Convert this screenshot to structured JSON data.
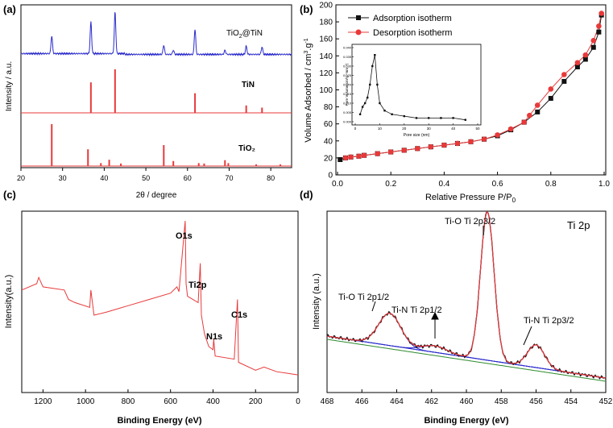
{
  "colors": {
    "blue": "#2b2bcc",
    "red": "#e8393a",
    "black": "#111111",
    "green": "#2e8b2e",
    "inset_line": "#111111"
  },
  "chart_data": [
    {
      "panel": "(a)",
      "type": "line",
      "xlabel": "2θ / degree",
      "ylabel": "Intensity / a.u.",
      "xlim": [
        20,
        85
      ],
      "xticks": [
        20,
        30,
        40,
        50,
        60,
        70,
        80
      ],
      "series_labels": [
        "TiO2@TiN",
        "TiN",
        "TiO₂"
      ],
      "tio2_tin_peaks": [
        [
          27.4,
          0.42
        ],
        [
          36.8,
          0.75
        ],
        [
          42.6,
          1.0
        ],
        [
          54.3,
          0.22
        ],
        [
          56.6,
          0.1
        ],
        [
          61.8,
          0.6
        ],
        [
          69.0,
          0.1
        ],
        [
          74.1,
          0.2
        ],
        [
          77.9,
          0.18
        ]
      ],
      "tin_lines": [
        [
          36.8,
          0.7
        ],
        [
          42.6,
          1.0
        ],
        [
          61.8,
          0.45
        ],
        [
          74.1,
          0.17
        ],
        [
          77.9,
          0.12
        ]
      ],
      "tio2_lines": [
        [
          27.4,
          1.0
        ],
        [
          36.1,
          0.4
        ],
        [
          39.2,
          0.07
        ],
        [
          41.2,
          0.15
        ],
        [
          44.0,
          0.06
        ],
        [
          54.3,
          0.5
        ],
        [
          56.6,
          0.12
        ],
        [
          62.7,
          0.07
        ],
        [
          64.0,
          0.06
        ],
        [
          69.0,
          0.14
        ],
        [
          69.8,
          0.07
        ],
        [
          76.5,
          0.04
        ],
        [
          82.3,
          0.04
        ]
      ]
    },
    {
      "panel": "(b)",
      "type": "line",
      "xlabel": "Relative Pressure  P/P",
      "xlabel_sub": "0",
      "ylabel": "Volume Adsorbed / cm",
      "ylabel_sup1": "3",
      "ylabel_mid": ".g",
      "ylabel_sup2": "-1",
      "xlim": [
        0,
        1.0
      ],
      "ylim": [
        0,
        200
      ],
      "xticks": [
        0.0,
        0.2,
        0.4,
        0.6,
        0.8,
        1.0
      ],
      "yticks": [
        0,
        20,
        40,
        60,
        80,
        100,
        120,
        140,
        160,
        180,
        200
      ],
      "legend": [
        "Adsorption isotherm",
        "Desorption isotherm"
      ],
      "series": [
        {
          "name": "Adsorption isotherm",
          "x": [
            0.01,
            0.03,
            0.05,
            0.08,
            0.1,
            0.15,
            0.2,
            0.25,
            0.3,
            0.35,
            0.4,
            0.45,
            0.5,
            0.55,
            0.6,
            0.65,
            0.7,
            0.75,
            0.8,
            0.85,
            0.9,
            0.93,
            0.96,
            0.98,
            0.99
          ],
          "y": [
            18,
            20,
            21,
            22,
            23,
            25,
            27,
            29,
            31,
            33,
            35,
            37,
            39,
            42,
            46,
            53,
            62,
            74,
            90,
            110,
            127,
            136,
            150,
            168,
            188
          ]
        },
        {
          "name": "Desorption isotherm",
          "x": [
            0.99,
            0.98,
            0.96,
            0.93,
            0.9,
            0.85,
            0.8,
            0.75,
            0.72,
            0.7,
            0.65,
            0.6,
            0.55,
            0.5,
            0.45,
            0.4,
            0.35,
            0.3,
            0.25,
            0.2,
            0.15,
            0.1,
            0.08,
            0.05,
            0.03
          ],
          "y": [
            190,
            175,
            158,
            141,
            132,
            118,
            101,
            82,
            70,
            62,
            54,
            47,
            42,
            39,
            37,
            35,
            33,
            31,
            29,
            27,
            25,
            23,
            22,
            21,
            20
          ]
        }
      ],
      "inset": {
        "xlabel": "Pore size (nm)",
        "ylabel": "Pore Volume(cm³g⁻¹nm⁻¹)",
        "xlim": [
          0,
          50
        ],
        "ylim": [
          0,
          0.04
        ],
        "xticks": [
          0,
          10,
          20,
          30,
          40,
          50
        ],
        "yticks": [
          "0.000",
          "0.005",
          "0.010",
          "0.015",
          "0.020",
          "0.025",
          "0.030",
          "0.035",
          "0.040"
        ],
        "x": [
          2,
          3,
          4,
          5,
          6,
          7,
          8,
          9,
          10,
          12,
          15,
          20,
          25,
          30,
          35,
          40,
          45
        ],
        "y": [
          0.004,
          0.008,
          0.01,
          0.013,
          0.02,
          0.03,
          0.036,
          0.02,
          0.01,
          0.006,
          0.004,
          0.003,
          0.002,
          0.002,
          0.002,
          0.002,
          0.001
        ]
      }
    },
    {
      "panel": "(c)",
      "type": "line",
      "xlabel": "Binding Energy (eV)",
      "ylabel": "Intensity(a.u.)",
      "xlim": [
        1300,
        0
      ],
      "xticks": [
        1200,
        1000,
        800,
        600,
        400,
        200,
        0
      ],
      "annotations": [
        "O1s",
        "Ti2p",
        "N1s",
        "C1s"
      ],
      "series": [
        {
          "name": "survey",
          "x": [
            1300,
            1230,
            1220,
            1200,
            1100,
            1080,
            1050,
            980,
            975,
            960,
            900,
            800,
            700,
            600,
            570,
            560,
            531,
            527,
            520,
            470,
            460,
            455,
            440,
            420,
            400,
            397,
            390,
            300,
            285,
            280,
            200,
            160,
            100,
            50,
            0
          ],
          "y": [
            0.56,
            0.6,
            0.64,
            0.58,
            0.56,
            0.5,
            0.48,
            0.45,
            0.56,
            0.4,
            0.42,
            0.46,
            0.5,
            0.54,
            0.58,
            0.55,
            1.0,
            0.6,
            0.52,
            0.48,
            0.73,
            0.4,
            0.28,
            0.2,
            0.18,
            0.25,
            0.14,
            0.12,
            0.5,
            0.1,
            0.05,
            0.07,
            0.04,
            0.03,
            0.02
          ]
        }
      ]
    },
    {
      "panel": "(d)",
      "type": "line",
      "title": "Ti 2p",
      "xlabel": "Binding Energy (eV)",
      "ylabel": "Intensity (a.u.)",
      "xlim": [
        468,
        452
      ],
      "xticks": [
        468,
        466,
        464,
        462,
        460,
        458,
        456,
        454,
        452
      ],
      "annotations": [
        "Ti-O Ti 2p1/2",
        "Ti-N Ti 2p1/2",
        "Ti-O Ti 2p3/2",
        "Ti-N Ti 2p3/2"
      ],
      "components": [
        {
          "name": "Ti-O Ti 2p1/2",
          "center": 464.4,
          "height": 0.2,
          "width": 0.9
        },
        {
          "name": "Ti-N Ti 2p1/2",
          "center": 461.8,
          "height": 0.04,
          "width": 1.0
        },
        {
          "name": "Ti-O Ti 2p3/2",
          "center": 458.8,
          "height": 0.92,
          "width": 0.55
        },
        {
          "name": "Ti-N Ti 2p3/2",
          "center": 456.0,
          "height": 0.14,
          "width": 0.7
        }
      ]
    }
  ]
}
